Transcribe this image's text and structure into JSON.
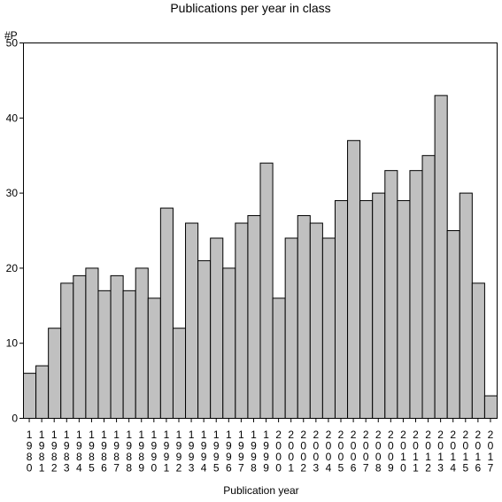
{
  "chart_data": {
    "type": "bar",
    "title": "Publications per year in class",
    "ylabel": "#P",
    "xlabel": "Publication year",
    "ylim": [
      0,
      50
    ],
    "yticks": [
      0,
      10,
      20,
      30,
      40,
      50
    ],
    "grid": false,
    "bar_color": "#c0c0c0",
    "categories": [
      "1980",
      "1981",
      "1982",
      "1983",
      "1984",
      "1985",
      "1986",
      "1987",
      "1988",
      "1989",
      "1990",
      "1991",
      "1992",
      "1993",
      "1994",
      "1995",
      "1996",
      "1997",
      "1998",
      "1999",
      "2000",
      "2001",
      "2002",
      "2003",
      "2004",
      "2005",
      "2006",
      "2007",
      "2008",
      "2009",
      "2010",
      "2011",
      "2012",
      "2013",
      "2014",
      "2015",
      "2016",
      "2017"
    ],
    "values": [
      6,
      7,
      12,
      18,
      19,
      20,
      17,
      19,
      17,
      20,
      16,
      28,
      12,
      26,
      21,
      24,
      20,
      26,
      27,
      34,
      16,
      24,
      27,
      26,
      24,
      29,
      37,
      29,
      30,
      33,
      29,
      33,
      35,
      43,
      25,
      30,
      18,
      3
    ]
  }
}
